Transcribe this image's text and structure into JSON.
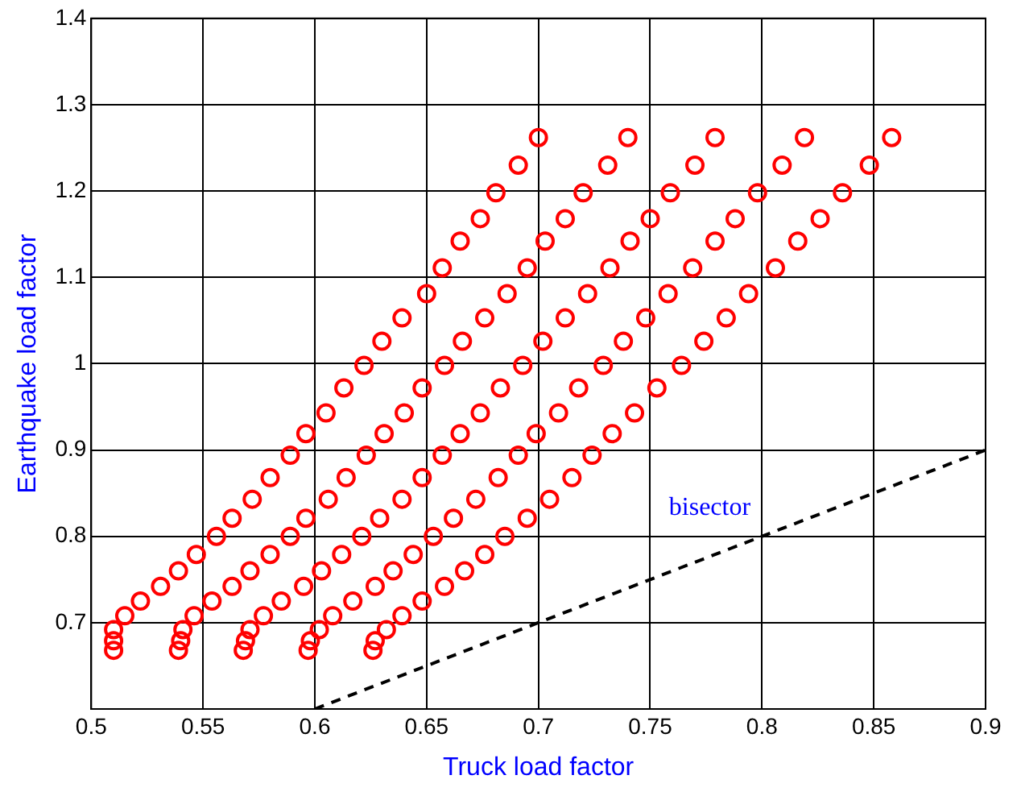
{
  "chart_data": {
    "type": "scatter",
    "xlabel": "Truck load factor",
    "ylabel": "Earthquake load factor",
    "xlim": [
      0.5,
      0.9
    ],
    "xticks": [
      0.5,
      0.55,
      0.6,
      0.65,
      0.7,
      0.75,
      0.8,
      0.85,
      0.9
    ],
    "ylim": [
      0.6,
      1.4
    ],
    "yticks": [
      0.7,
      0.8,
      0.9,
      1,
      1.1,
      1.2,
      1.3,
      1.4
    ],
    "grid": true,
    "legend": false,
    "series": [
      {
        "type": "scatter",
        "color": "#ff0000",
        "marker": "circle",
        "x": [
          0.7,
          0.74,
          0.779,
          0.819,
          0.858,
          0.691,
          0.731,
          0.77,
          0.809,
          0.848,
          0.681,
          0.72,
          0.759,
          0.798,
          0.836,
          0.674,
          0.712,
          0.75,
          0.788,
          0.826,
          0.665,
          0.703,
          0.741,
          0.779,
          0.816,
          0.657,
          0.695,
          0.732,
          0.769,
          0.806,
          0.65,
          0.686,
          0.722,
          0.758,
          0.794,
          0.639,
          0.676,
          0.712,
          0.748,
          0.784,
          0.63,
          0.666,
          0.702,
          0.738,
          0.774,
          0.622,
          0.658,
          0.693,
          0.729,
          0.764,
          0.613,
          0.648,
          0.683,
          0.718,
          0.753,
          0.605,
          0.64,
          0.674,
          0.709,
          0.743,
          0.596,
          0.631,
          0.665,
          0.699,
          0.733,
          0.589,
          0.623,
          0.657,
          0.691,
          0.724,
          0.58,
          0.614,
          0.648,
          0.682,
          0.715,
          0.572,
          0.606,
          0.639,
          0.672,
          0.705,
          0.563,
          0.596,
          0.629,
          0.662,
          0.695,
          0.556,
          0.589,
          0.621,
          0.653,
          0.685,
          0.547,
          0.58,
          0.612,
          0.644,
          0.676,
          0.539,
          0.571,
          0.603,
          0.635,
          0.667,
          0.531,
          0.563,
          0.595,
          0.627,
          0.658,
          0.522,
          0.554,
          0.585,
          0.617,
          0.648,
          0.515,
          0.546,
          0.577,
          0.608,
          0.639,
          0.51,
          0.541,
          0.571,
          0.602,
          0.632,
          0.51,
          0.54,
          0.569,
          0.598,
          0.627,
          0.51,
          0.539,
          0.568,
          0.597,
          0.626
        ],
        "values": [
          1.262,
          1.262,
          1.262,
          1.262,
          1.262,
          1.23,
          1.23,
          1.23,
          1.23,
          1.23,
          1.198,
          1.198,
          1.198,
          1.198,
          1.198,
          1.168,
          1.168,
          1.168,
          1.168,
          1.168,
          1.142,
          1.142,
          1.142,
          1.142,
          1.142,
          1.111,
          1.111,
          1.111,
          1.111,
          1.111,
          1.081,
          1.081,
          1.081,
          1.081,
          1.081,
          1.053,
          1.053,
          1.053,
          1.053,
          1.053,
          1.026,
          1.026,
          1.026,
          1.026,
          1.026,
          0.998,
          0.998,
          0.998,
          0.998,
          0.998,
          0.972,
          0.972,
          0.972,
          0.972,
          0.972,
          0.943,
          0.943,
          0.943,
          0.943,
          0.943,
          0.919,
          0.919,
          0.919,
          0.919,
          0.919,
          0.894,
          0.894,
          0.894,
          0.894,
          0.894,
          0.868,
          0.868,
          0.868,
          0.868,
          0.868,
          0.843,
          0.843,
          0.843,
          0.843,
          0.843,
          0.821,
          0.821,
          0.821,
          0.821,
          0.821,
          0.8,
          0.8,
          0.8,
          0.8,
          0.8,
          0.779,
          0.779,
          0.779,
          0.779,
          0.779,
          0.76,
          0.76,
          0.76,
          0.76,
          0.76,
          0.742,
          0.742,
          0.742,
          0.742,
          0.742,
          0.725,
          0.725,
          0.725,
          0.725,
          0.725,
          0.708,
          0.708,
          0.708,
          0.708,
          0.708,
          0.692,
          0.692,
          0.692,
          0.692,
          0.692,
          0.679,
          0.679,
          0.679,
          0.679,
          0.679,
          0.668,
          0.668,
          0.668,
          0.668,
          0.668
        ]
      },
      {
        "type": "line",
        "name": "bisector",
        "color": "#000000",
        "line_style": "dashed",
        "marker": "none",
        "x": [
          0.6,
          0.9
        ],
        "values": [
          0.6,
          0.9
        ]
      }
    ]
  }
}
